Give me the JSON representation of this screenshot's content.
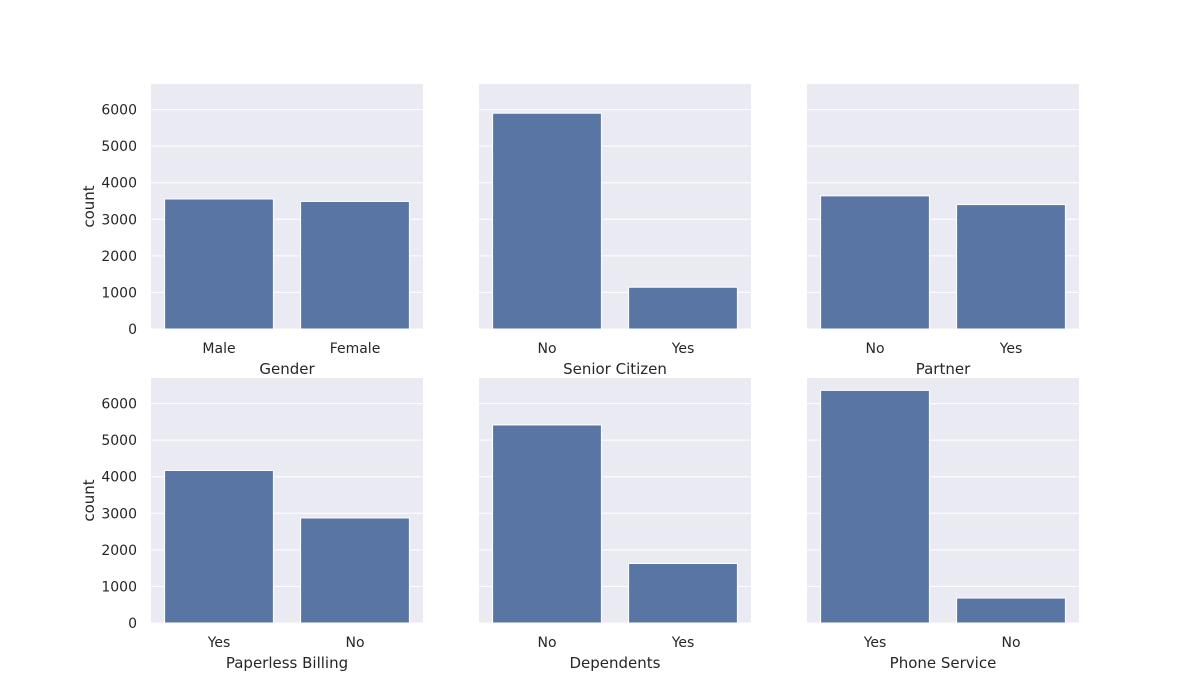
{
  "style": {
    "panel_bg": "#eaeaf2",
    "grid": "#ffffff",
    "bar": "#5875a4",
    "text": "#262626"
  },
  "chart_data": [
    {
      "type": "bar",
      "xlabel": "Gender",
      "ylabel": "count",
      "categories": [
        "Male",
        "Female"
      ],
      "values": [
        3555,
        3488
      ],
      "ylim": [
        0,
        6700
      ],
      "yticks": [
        "0",
        "1000",
        "2000",
        "3000",
        "4000",
        "5000",
        "6000"
      ],
      "grid": true
    },
    {
      "type": "bar",
      "xlabel": "Senior Citizen",
      "ylabel": "",
      "categories": [
        "No",
        "Yes"
      ],
      "values": [
        5901,
        1142
      ],
      "ylim": [
        0,
        6700
      ],
      "yticks": [],
      "grid": true
    },
    {
      "type": "bar",
      "xlabel": "Partner",
      "ylabel": "",
      "categories": [
        "No",
        "Yes"
      ],
      "values": [
        3641,
        3402
      ],
      "ylim": [
        0,
        6700
      ],
      "yticks": [],
      "grid": true
    },
    {
      "type": "bar",
      "xlabel": "Paperless Billing",
      "ylabel": "count",
      "categories": [
        "Yes",
        "No"
      ],
      "values": [
        4171,
        2872
      ],
      "ylim": [
        0,
        6700
      ],
      "yticks": [
        "0",
        "1000",
        "2000",
        "3000",
        "4000",
        "5000",
        "6000"
      ],
      "grid": true
    },
    {
      "type": "bar",
      "xlabel": "Dependents",
      "ylabel": "",
      "categories": [
        "No",
        "Yes"
      ],
      "values": [
        5416,
        1627
      ],
      "ylim": [
        0,
        6700
      ],
      "yticks": [],
      "grid": true
    },
    {
      "type": "bar",
      "xlabel": "Phone Service",
      "ylabel": "",
      "categories": [
        "Yes",
        "No"
      ],
      "values": [
        6361,
        682
      ],
      "ylim": [
        0,
        6700
      ],
      "yticks": [],
      "grid": true
    }
  ]
}
